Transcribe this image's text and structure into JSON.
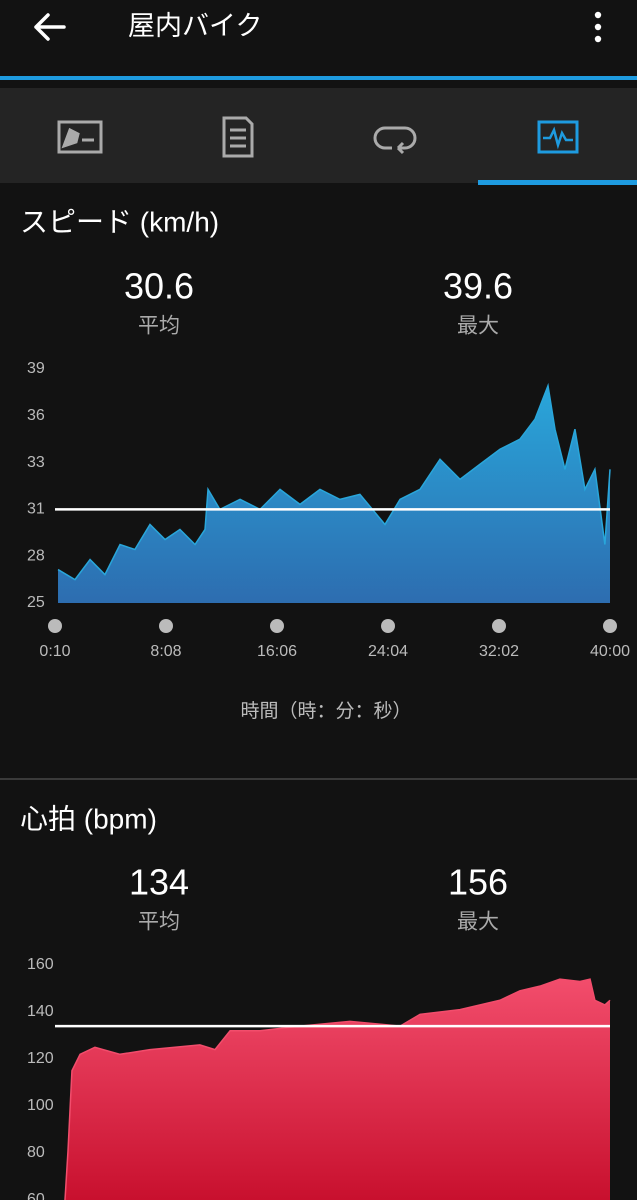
{
  "header": {
    "title": "屋内バイク"
  },
  "chart_data": [
    {
      "type": "area",
      "title": "スピード (km/h)",
      "color": "#29a6da",
      "color_bottom": "#2d6db0",
      "average": 30.6,
      "average_label": "平均",
      "max": 39.6,
      "max_label": "最大",
      "x": [
        23,
        96,
        161,
        225,
        290,
        354,
        419,
        484,
        548,
        613,
        656,
        669,
        720,
        807,
        893,
        979,
        1065,
        1151,
        1237,
        1323,
        1431,
        1496,
        1582,
        1668,
        1754,
        1840,
        1926,
        2012,
        2077,
        2133,
        2163,
        2206,
        2249,
        2292,
        2335,
        2378,
        2400
      ],
      "values": [
        27.0,
        26.4,
        27.6,
        26.7,
        28.5,
        28.2,
        29.7,
        28.8,
        29.4,
        28.5,
        29.4,
        31.8,
        30.6,
        31.2,
        30.6,
        31.8,
        30.9,
        31.8,
        31.2,
        31.5,
        29.7,
        31.2,
        31.8,
        33.6,
        32.4,
        33.3,
        34.2,
        34.8,
        36.0,
        38.0,
        35.4,
        33.0,
        35.4,
        31.8,
        33.0,
        28.5,
        33.0
      ],
      "xlim": [
        10,
        2400
      ],
      "xticks": [
        {
          "value": 10,
          "label": "0:10"
        },
        {
          "value": 488,
          "label": "8:08"
        },
        {
          "value": 966,
          "label": "16:06"
        },
        {
          "value": 1444,
          "label": "24:04"
        },
        {
          "value": 1922,
          "label": "32:02"
        },
        {
          "value": 2400,
          "label": "40:00"
        }
      ],
      "x_label": "時間（時：分：秒）",
      "ylim": [
        25,
        39
      ],
      "yticks": [
        25,
        {
          "value": 27.8,
          "label": "28"
        },
        {
          "value": 30.6,
          "label": "31"
        },
        {
          "value": 33.4,
          "label": "33"
        },
        {
          "value": 36.2,
          "label": "36"
        },
        39
      ]
    },
    {
      "type": "area",
      "title": "心拍 (bpm)",
      "color": "#f24d6c",
      "color_bottom": "#c8102e",
      "average": 134,
      "average_label": "平均",
      "max": 156,
      "max_label": "最大",
      "x": [
        53,
        66,
        83,
        118,
        182,
        290,
        419,
        634,
        699,
        764,
        893,
        1065,
        1280,
        1496,
        1582,
        1754,
        1926,
        2012,
        2098,
        2184,
        2271,
        2314,
        2335,
        2378,
        2400
      ],
      "values": [
        60,
        81,
        115,
        122,
        125,
        122,
        124,
        126,
        124,
        132,
        132,
        134,
        136,
        134,
        139,
        141,
        145,
        149,
        151,
        154,
        153,
        154,
        145,
        143,
        145
      ],
      "xlim": [
        10,
        2400
      ],
      "ylim": [
        60,
        160
      ],
      "yticks": [
        60,
        80,
        100,
        120,
        140,
        160
      ]
    }
  ]
}
